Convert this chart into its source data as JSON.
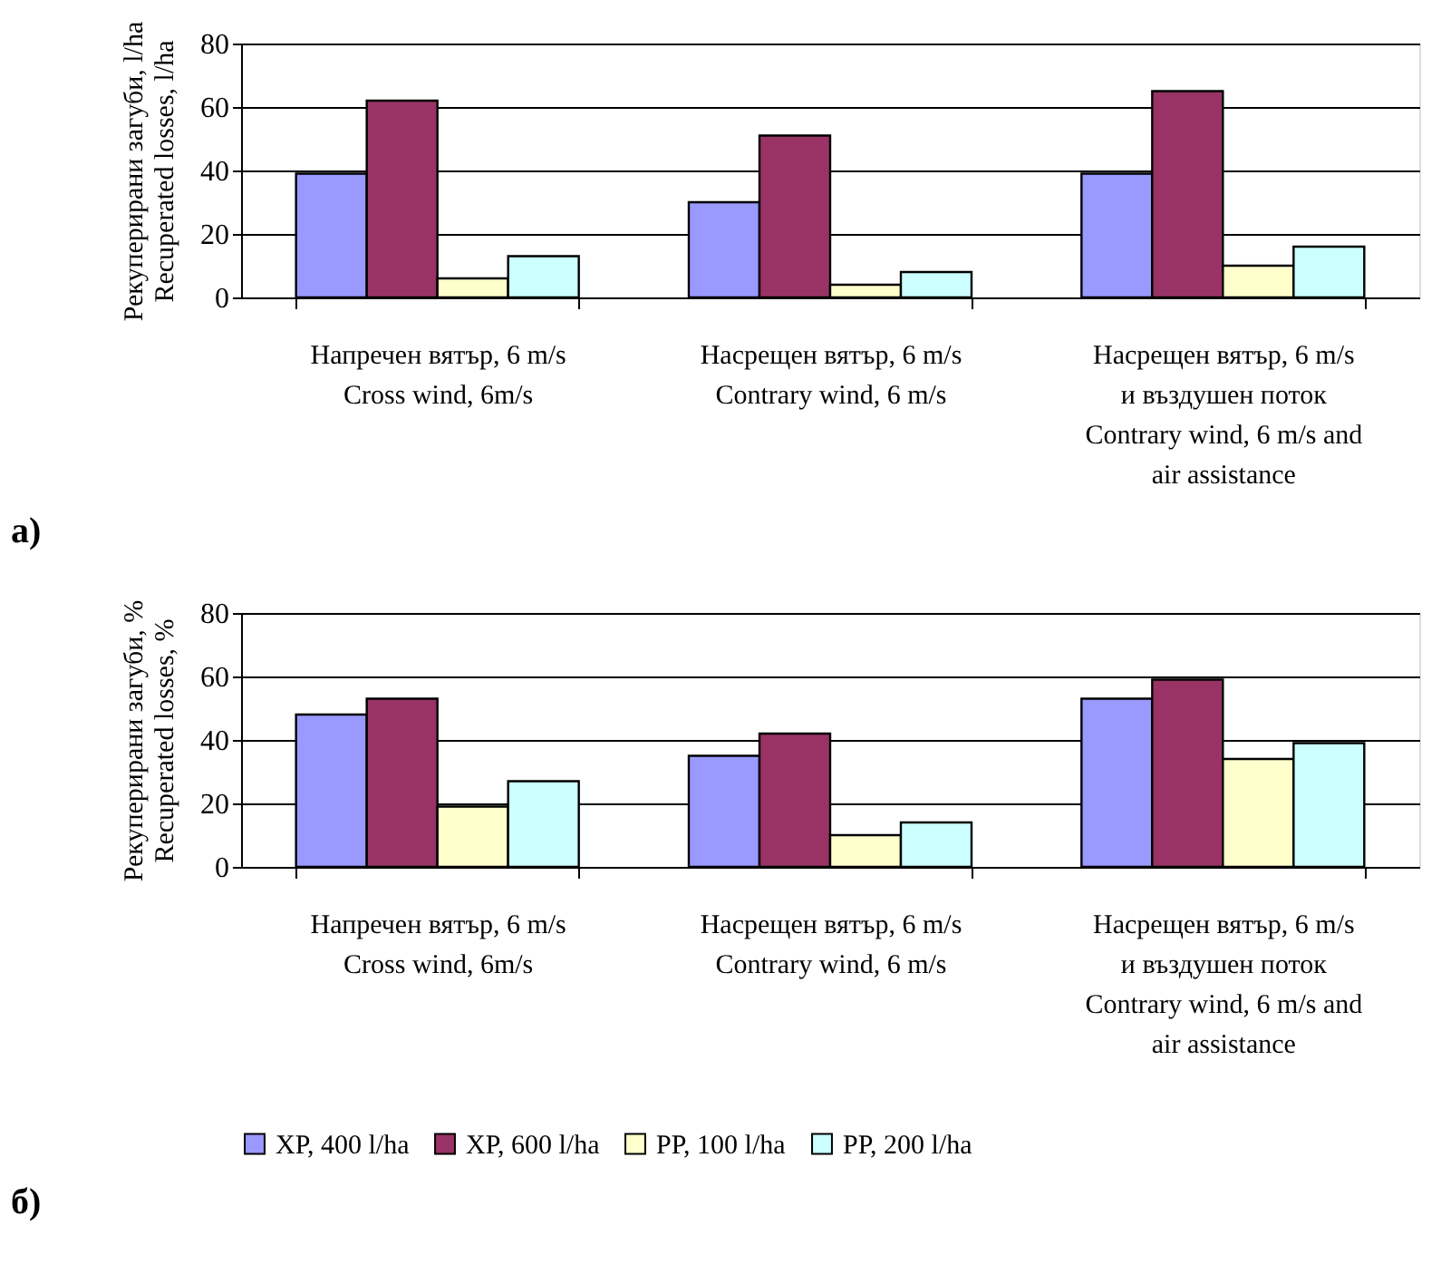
{
  "chart_data": [
    {
      "type": "bar",
      "ylabel": "Рекуперирани загуби, l/ha\nRecuperated losses, l/ha",
      "annotations": [
        "а)"
      ],
      "categories": [
        "Напречен вятър, 6 m/s\nCross wind, 6m/s",
        "Насрещен вятър, 6 m/s\nContrary wind, 6 m/s",
        "Насрещен вятър, 6 m/s\nи въздушен поток\nContrary wind, 6 m/s and\nair assistance"
      ],
      "series": [
        {
          "color": "#9999ff",
          "values": [
            39,
            30,
            39
          ]
        },
        {
          "color": "#993366",
          "values": [
            62,
            51,
            65
          ]
        },
        {
          "color": "#ffffcc",
          "values": [
            6,
            4,
            10
          ]
        },
        {
          "color": "#ccffff",
          "values": [
            13,
            8,
            16
          ]
        }
      ],
      "ylim": [
        0,
        80
      ],
      "yticks": [
        0,
        20,
        40,
        60,
        80
      ],
      "grid": "y",
      "legend": false
    },
    {
      "type": "bar",
      "ylabel": "Рекуперирани загуби, %\nRecuperated losses, %",
      "annotations": [
        "б)"
      ],
      "categories": [
        "Напречен вятър, 6 m/s\nCross wind, 6m/s",
        "Насрещен вятър, 6 m/s\nContrary wind, 6 m/s",
        "Насрещен вятър, 6 m/s\nи въздушен поток\nContrary wind, 6 m/s and\nair assistance"
      ],
      "series": [
        {
          "name": "XP, 400 l/ha",
          "color": "#9999ff",
          "values": [
            48,
            35,
            53
          ]
        },
        {
          "name": "XP, 600 l/ha",
          "color": "#993366",
          "values": [
            53,
            42,
            59
          ]
        },
        {
          "name": "PP, 100 l/ha",
          "color": "#ffffcc",
          "values": [
            19,
            10,
            34
          ]
        },
        {
          "name": "PP, 200 l/ha",
          "color": "#ccffff",
          "values": [
            27,
            14,
            39
          ]
        }
      ],
      "ylim": [
        0,
        80
      ],
      "yticks": [
        0,
        20,
        40,
        60,
        80
      ],
      "grid": "y",
      "legend": "bottom"
    }
  ]
}
